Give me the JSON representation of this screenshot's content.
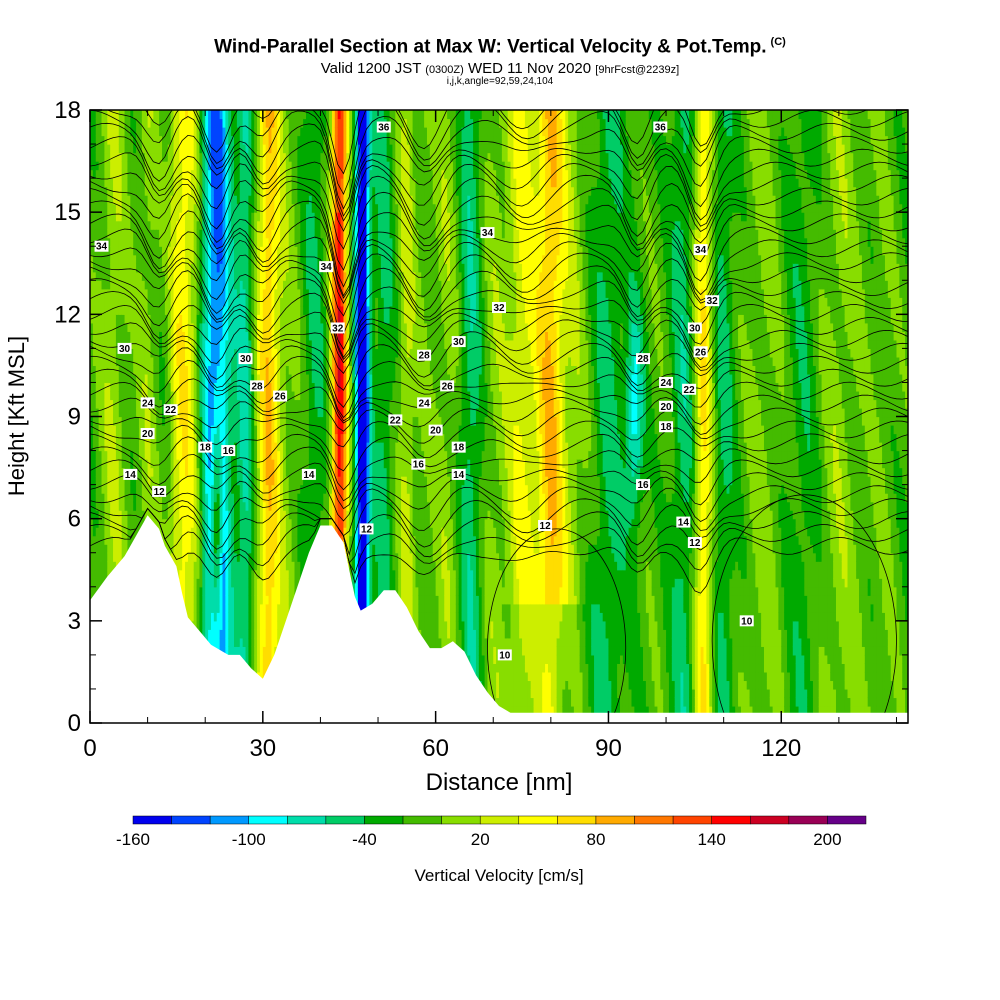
{
  "header": {
    "title": "Wind-Parallel Section at Max W: Vertical Velocity & Pot.Temp.",
    "copyright": "(C)",
    "valid_prefix": "Valid 1200 JST",
    "valid_z": "(0300Z)",
    "valid_date": "WED 11 Nov 2020",
    "forecast_tag": "[9hrFcst@2239z]",
    "indices": "i,j,k,angle=92,59,24,104"
  },
  "chart_data": {
    "type": "heatmap",
    "xlabel": "Distance [nm]",
    "ylabel": "Height [Kft MSL]",
    "xlim": [
      0,
      142
    ],
    "ylim": [
      0,
      18
    ],
    "x_ticks": [
      0,
      30,
      60,
      90,
      120
    ],
    "y_ticks": [
      0,
      3,
      6,
      9,
      12,
      15,
      18
    ],
    "grid": false,
    "colorbar": {
      "label": "Vertical Velocity [cm/s]",
      "min": -160,
      "max": 220,
      "step": 20,
      "tick_labels": [
        -160,
        -100,
        -40,
        20,
        80,
        140,
        200
      ],
      "colors": [
        "#0000ee",
        "#0044ff",
        "#0099ff",
        "#00ffff",
        "#00ddaa",
        "#00cc66",
        "#00aa00",
        "#44bb00",
        "#88dd00",
        "#ccee00",
        "#ffff00",
        "#ffdd00",
        "#ffaa00",
        "#ff7700",
        "#ff4400",
        "#ff0000",
        "#cc0022",
        "#990055",
        "#660088"
      ]
    },
    "field": "vertical_velocity",
    "field_units": "cm/s",
    "contour_field": "potential_temperature",
    "contour_labels": [
      {
        "x": 2,
        "y": 14,
        "text": "34"
      },
      {
        "x": 6,
        "y": 11,
        "text": "30"
      },
      {
        "x": 10,
        "y": 9.4,
        "text": "24"
      },
      {
        "x": 14,
        "y": 9.2,
        "text": "22"
      },
      {
        "x": 10,
        "y": 8.5,
        "text": "20"
      },
      {
        "x": 20,
        "y": 8.1,
        "text": "18"
      },
      {
        "x": 24,
        "y": 8.0,
        "text": "16"
      },
      {
        "x": 7,
        "y": 7.3,
        "text": "14"
      },
      {
        "x": 12,
        "y": 6.8,
        "text": "12"
      },
      {
        "x": 27,
        "y": 10.7,
        "text": "30"
      },
      {
        "x": 29,
        "y": 9.9,
        "text": "28"
      },
      {
        "x": 33,
        "y": 9.6,
        "text": "26"
      },
      {
        "x": 38,
        "y": 7.3,
        "text": "14"
      },
      {
        "x": 41,
        "y": 13.4,
        "text": "34"
      },
      {
        "x": 43,
        "y": 11.6,
        "text": "32"
      },
      {
        "x": 51,
        "y": 17.5,
        "text": "36"
      },
      {
        "x": 58,
        "y": 10.8,
        "text": "28"
      },
      {
        "x": 64,
        "y": 11.2,
        "text": "30"
      },
      {
        "x": 62,
        "y": 9.9,
        "text": "26"
      },
      {
        "x": 58,
        "y": 9.4,
        "text": "24"
      },
      {
        "x": 53,
        "y": 8.9,
        "text": "22"
      },
      {
        "x": 60,
        "y": 8.6,
        "text": "20"
      },
      {
        "x": 64,
        "y": 8.1,
        "text": "18"
      },
      {
        "x": 57,
        "y": 7.6,
        "text": "16"
      },
      {
        "x": 64,
        "y": 7.3,
        "text": "14"
      },
      {
        "x": 48,
        "y": 5.7,
        "text": "12"
      },
      {
        "x": 69,
        "y": 14.4,
        "text": "34"
      },
      {
        "x": 71,
        "y": 12.2,
        "text": "32"
      },
      {
        "x": 72,
        "y": 2.0,
        "text": "10"
      },
      {
        "x": 79,
        "y": 5.8,
        "text": "12"
      },
      {
        "x": 99,
        "y": 17.5,
        "text": "36"
      },
      {
        "x": 96,
        "y": 10.7,
        "text": "28"
      },
      {
        "x": 100,
        "y": 10.0,
        "text": "24"
      },
      {
        "x": 100,
        "y": 9.3,
        "text": "20"
      },
      {
        "x": 100,
        "y": 8.7,
        "text": "18"
      },
      {
        "x": 96,
        "y": 7.0,
        "text": "16"
      },
      {
        "x": 106,
        "y": 13.9,
        "text": "34"
      },
      {
        "x": 108,
        "y": 12.4,
        "text": "32"
      },
      {
        "x": 105,
        "y": 11.6,
        "text": "30"
      },
      {
        "x": 106,
        "y": 10.9,
        "text": "26"
      },
      {
        "x": 104,
        "y": 9.8,
        "text": "22"
      },
      {
        "x": 103,
        "y": 5.9,
        "text": "14"
      },
      {
        "x": 105,
        "y": 5.3,
        "text": "12"
      },
      {
        "x": 114,
        "y": 3.0,
        "text": "10"
      }
    ],
    "terrain_kft": [
      {
        "x": 0,
        "y": 3.6
      },
      {
        "x": 3,
        "y": 4.3
      },
      {
        "x": 6,
        "y": 4.9
      },
      {
        "x": 8,
        "y": 5.5
      },
      {
        "x": 10,
        "y": 6.1
      },
      {
        "x": 12,
        "y": 5.7
      },
      {
        "x": 13,
        "y": 5.2
      },
      {
        "x": 15,
        "y": 4.6
      },
      {
        "x": 16,
        "y": 3.8
      },
      {
        "x": 17,
        "y": 3.1
      },
      {
        "x": 19,
        "y": 2.7
      },
      {
        "x": 21,
        "y": 2.3
      },
      {
        "x": 23,
        "y": 2.1
      },
      {
        "x": 24,
        "y": 2.0
      },
      {
        "x": 26,
        "y": 2.0
      },
      {
        "x": 28,
        "y": 1.6
      },
      {
        "x": 30,
        "y": 1.3
      },
      {
        "x": 32,
        "y": 2.0
      },
      {
        "x": 34,
        "y": 3.0
      },
      {
        "x": 36,
        "y": 4.0
      },
      {
        "x": 38,
        "y": 5.0
      },
      {
        "x": 40,
        "y": 5.8
      },
      {
        "x": 42,
        "y": 5.8
      },
      {
        "x": 44,
        "y": 5.3
      },
      {
        "x": 45,
        "y": 4.5
      },
      {
        "x": 46,
        "y": 3.7
      },
      {
        "x": 47,
        "y": 3.3
      },
      {
        "x": 49,
        "y": 3.5
      },
      {
        "x": 51,
        "y": 3.9
      },
      {
        "x": 53,
        "y": 3.9
      },
      {
        "x": 55,
        "y": 3.4
      },
      {
        "x": 57,
        "y": 2.7
      },
      {
        "x": 59,
        "y": 2.2
      },
      {
        "x": 61,
        "y": 2.2
      },
      {
        "x": 63,
        "y": 2.4
      },
      {
        "x": 65,
        "y": 2.1
      },
      {
        "x": 67,
        "y": 1.4
      },
      {
        "x": 69,
        "y": 0.9
      },
      {
        "x": 71,
        "y": 0.5
      },
      {
        "x": 73,
        "y": 0.3
      },
      {
        "x": 142,
        "y": 0.3
      }
    ]
  }
}
